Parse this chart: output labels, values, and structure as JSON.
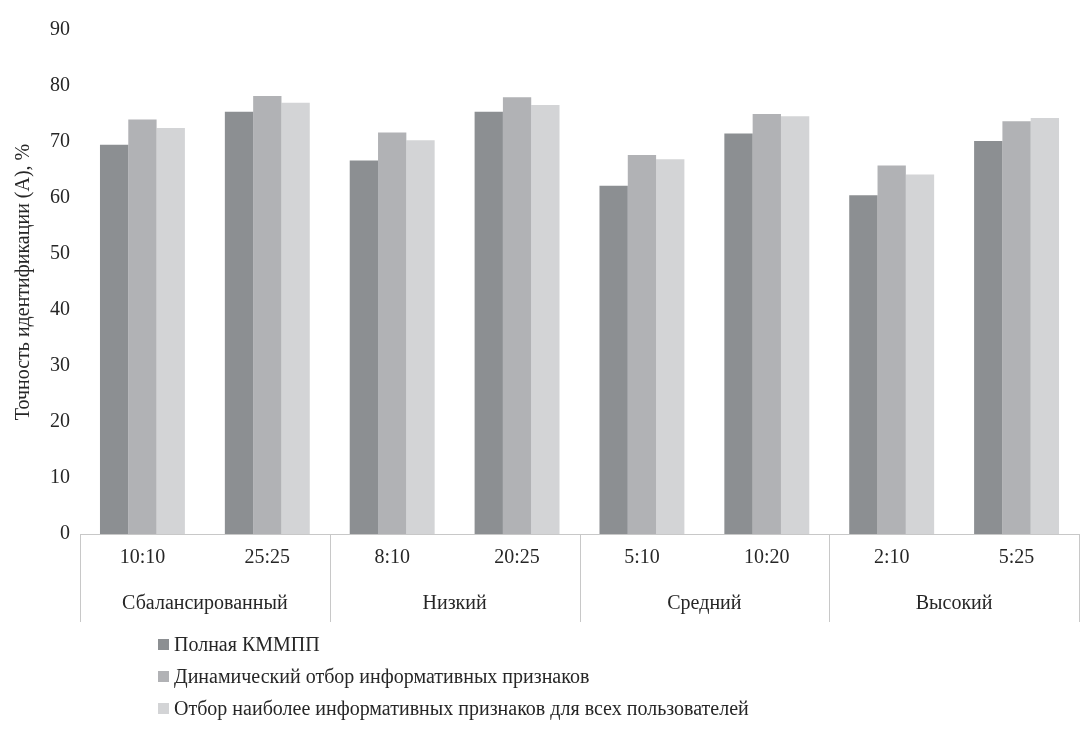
{
  "chart_data": {
    "type": "bar",
    "ylabel": "Точность идентификации (A), %",
    "categories": [
      "10:10",
      "25:25",
      "8:10",
      "20:25",
      "5:10",
      "10:20",
      "2:10",
      "5:25"
    ],
    "annotations": [
      "Сбалансированный",
      "Низкий",
      "Средний",
      "Высокий"
    ],
    "series": [
      {
        "name": "Полная КММПП",
        "color": "#8c8f92",
        "values": [
          69.5,
          75.4,
          66.7,
          75.4,
          62.2,
          71.5,
          60.5,
          70.2
        ]
      },
      {
        "name": "Динамический отбор информативных признаков",
        "color": "#b1b2b5",
        "values": [
          74,
          78.2,
          71.7,
          78,
          67.7,
          75,
          65.8,
          73.7
        ]
      },
      {
        "name": "Отбор наиболее информативных признаков для всех пользователей",
        "color": "#d3d4d6",
        "values": [
          72.5,
          77,
          70.3,
          76.6,
          66.9,
          74.6,
          64.2,
          74.3
        ]
      }
    ],
    "ylim": [
      0,
      90
    ],
    "yticks": [
      0,
      10,
      20,
      30,
      40,
      50,
      60,
      70,
      80,
      90
    ],
    "grid": false,
    "legend": "bottom"
  }
}
